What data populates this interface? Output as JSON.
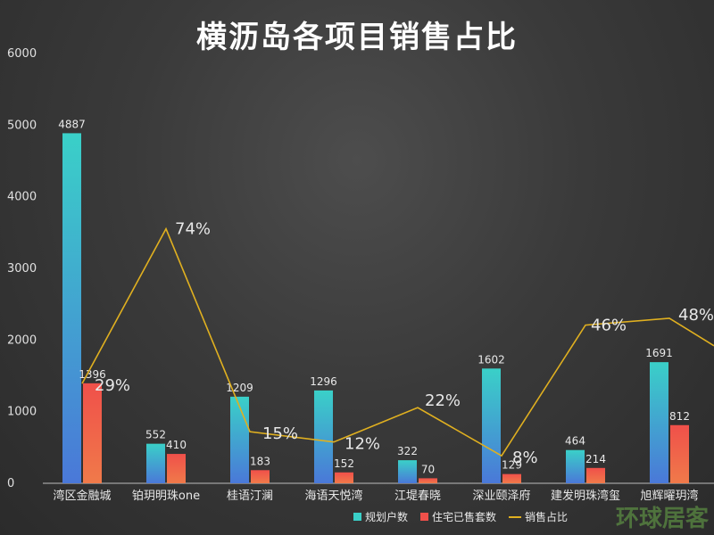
{
  "chart_data": {
    "type": "bar",
    "title": "横沥岛各项目销售占比",
    "categories": [
      "湾区金融城",
      "铂玥明珠one",
      "桂语汀澜",
      "海语天悦湾",
      "江堤春晓",
      "深业颐泽府",
      "建发明珠湾玺",
      "旭辉曜玥湾"
    ],
    "ylim": [
      0,
      6000
    ],
    "yticks": [
      0,
      1000,
      2000,
      3000,
      4000,
      5000,
      6000
    ],
    "series": [
      {
        "name": "规划户数",
        "type": "bar",
        "values": [
          4887,
          552,
          1209,
          1296,
          322,
          1602,
          464,
          1691
        ],
        "color_top": "#3ad0c8",
        "color_bottom": "#4a78d8"
      },
      {
        "name": "住宅已售套数",
        "type": "bar",
        "values": [
          1396,
          410,
          183,
          152,
          70,
          129,
          214,
          812
        ],
        "color_top": "#f0504a",
        "color_bottom": "#f07a4a"
      },
      {
        "name": "销售占比",
        "type": "line",
        "values": [
          29,
          74,
          15,
          12,
          22,
          8,
          46,
          48
        ],
        "labels": [
          "29%",
          "74%",
          "15%",
          "12%",
          "22%",
          "8%",
          "46%",
          "48%"
        ],
        "color": "#e0b020",
        "extends_past_right_edge": true
      }
    ],
    "legend_position": "bottom",
    "grid": false
  },
  "watermark": "环球居客"
}
